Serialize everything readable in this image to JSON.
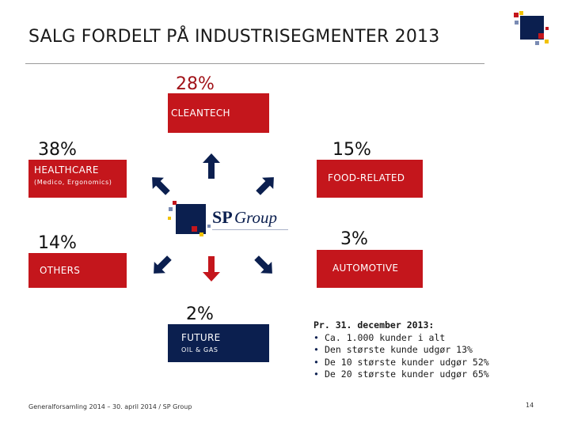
{
  "title": "SALG FORDELT PÅ INDUSTRISEGMENTER 2013",
  "colors": {
    "red": "#c4161c",
    "navy": "#0b1f4f",
    "text": "#111111"
  },
  "segments": {
    "cleantech": {
      "percent": "28%",
      "label": "CLEANTECH"
    },
    "healthcare": {
      "percent": "38%",
      "label": "HEALTHCARE",
      "sublabel": "(Medico, Ergonomics)"
    },
    "food": {
      "percent": "15%",
      "label": "FOOD-RELATED"
    },
    "others": {
      "percent": "14%",
      "label": "OTHERS"
    },
    "automotive": {
      "percent": "3%",
      "label": "AUTOMOTIVE"
    },
    "future": {
      "percent": "2%",
      "label": "FUTURE",
      "sublabel": "OIL & GAS"
    }
  },
  "center_logo": {
    "text_sp": "SP",
    "text_group": "Group",
    "icon": "sp-group-logo"
  },
  "info": {
    "heading": "Pr. 31. december 2013:",
    "bullets": [
      "Ca. 1.000 kunder i alt",
      "Den største kunde udgør 13%",
      "De 10 største kunder udgør 52%",
      "De 20 største kunder udgør 65%"
    ]
  },
  "footer": "Generalforsamling 2014 – 30. april 2014 / SP Group",
  "page_number": "14"
}
